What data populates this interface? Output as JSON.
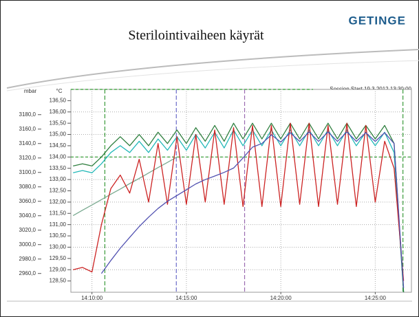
{
  "brand": "GETINGE",
  "chart_data": {
    "type": "line",
    "title": "Sterilointivaiheen käyrät",
    "annotation": "Session Start 19.3.2012 13:30:00",
    "ylabel": "°C",
    "y2label": "mbar",
    "x": [
      "14:09:00",
      "14:09:30",
      "14:10:00",
      "14:10:30",
      "14:11:00",
      "14:11:30",
      "14:12:00",
      "14:12:30",
      "14:13:00",
      "14:13:30",
      "14:14:00",
      "14:14:30",
      "14:15:00",
      "14:15:30",
      "14:16:00",
      "14:16:30",
      "14:17:00",
      "14:17:30",
      "14:18:00",
      "14:18:30",
      "14:19:00",
      "14:19:30",
      "14:20:00",
      "14:20:30",
      "14:21:00",
      "14:21:30",
      "14:22:00",
      "14:22:30",
      "14:23:00",
      "14:23:30",
      "14:24:00",
      "14:24:30",
      "14:25:00",
      "14:25:30",
      "14:26:00",
      "14:26:30"
    ],
    "xlim": [
      "14:08:53",
      "14:26:55"
    ],
    "xticks": [
      "14:10:00",
      "14:15:00",
      "14:20:00",
      "14:25:00"
    ],
    "ylim": [
      128.0,
      137.0
    ],
    "yticks": [
      {
        "value": 128.5,
        "label": "128,50"
      },
      {
        "value": 129,
        "label": "129,00"
      },
      {
        "value": 129.5,
        "label": "129,50"
      },
      {
        "value": 130,
        "label": "130,00"
      },
      {
        "value": 130.5,
        "label": "130,50"
      },
      {
        "value": 131,
        "label": "131,00"
      },
      {
        "value": 131.5,
        "label": "131,50"
      },
      {
        "value": 132,
        "label": "132,00"
      },
      {
        "value": 132.5,
        "label": "132,50"
      },
      {
        "value": 133,
        "label": "133,00"
      },
      {
        "value": 133.5,
        "label": "133,50"
      },
      {
        "value": 134,
        "label": "134,00"
      },
      {
        "value": 134.5,
        "label": "134,50"
      },
      {
        "value": 135,
        "label": "135,00"
      },
      {
        "value": 135.5,
        "label": "135,50"
      },
      {
        "value": 136,
        "label": "136,00"
      },
      {
        "value": 136.5,
        "label": "136,50"
      }
    ],
    "y2lim": [
      2934,
      3215
    ],
    "y2ticks": [
      {
        "value": 2960,
        "label": "2960,0"
      },
      {
        "value": 2980,
        "label": "2980,0"
      },
      {
        "value": 3000,
        "label": "3000,0"
      },
      {
        "value": 3020,
        "label": "3020,0"
      },
      {
        "value": 3040,
        "label": "3040,0"
      },
      {
        "value": 3060,
        "label": "3060,0"
      },
      {
        "value": 3080,
        "label": "3080,0"
      },
      {
        "value": 3100,
        "label": "3100,0"
      },
      {
        "value": 3120,
        "label": "3120,0"
      },
      {
        "value": 3140,
        "label": "3140,0"
      },
      {
        "value": 3160,
        "label": "3160,0"
      },
      {
        "value": 3180,
        "label": "3180,0"
      }
    ],
    "grid": true,
    "hlines": [
      {
        "value": 134.0,
        "color": "#2a9a2a"
      }
    ],
    "vlines": [
      {
        "x": "14:10:41",
        "color": "#3a9a3a"
      },
      {
        "x": "14:14:28",
        "color": "#6a6ac8"
      },
      {
        "x": "14:18:05",
        "color": "#9a6ab0"
      },
      {
        "x": "14:26:28",
        "color": "#3a9a3a"
      }
    ],
    "series": [
      {
        "color": "#7aaa90",
        "values": [
          131.4,
          131.64,
          131.87,
          132.11,
          132.35,
          132.58,
          132.82,
          133.05,
          133.29,
          133.53,
          133.76,
          134.0,
          null,
          null,
          null,
          null,
          null,
          null,
          null,
          null,
          null,
          null,
          null,
          null,
          null,
          null,
          null,
          null,
          null,
          null,
          null,
          null,
          null,
          null,
          null,
          null
        ]
      },
      {
        "color": "#22b8b8",
        "values": [
          133.3,
          133.4,
          133.3,
          133.7,
          134.2,
          134.5,
          134.2,
          134.7,
          134.2,
          134.8,
          134.3,
          134.9,
          134.3,
          135.0,
          134.4,
          135.1,
          134.4,
          135.2,
          134.5,
          135.2,
          134.5,
          135.2,
          134.5,
          135.2,
          134.5,
          135.2,
          134.5,
          135.2,
          134.5,
          135.2,
          134.5,
          135.1,
          134.5,
          135.1,
          134.2,
          128.0
        ]
      },
      {
        "color": "#2f7f3f",
        "values": [
          133.6,
          133.7,
          133.6,
          134.0,
          134.5,
          134.9,
          134.5,
          135.0,
          134.5,
          135.1,
          134.6,
          135.2,
          134.6,
          135.3,
          134.7,
          135.4,
          134.7,
          135.5,
          134.8,
          135.5,
          134.8,
          135.5,
          134.8,
          135.5,
          134.8,
          135.5,
          134.8,
          135.5,
          134.8,
          135.5,
          134.8,
          135.4,
          134.8,
          135.4,
          134.6,
          128.0
        ]
      },
      {
        "color": "#cc2222",
        "values": [
          129.0,
          129.1,
          128.9,
          131.0,
          132.6,
          133.2,
          132.4,
          133.9,
          132.0,
          134.6,
          131.9,
          134.9,
          131.9,
          135.0,
          132.0,
          135.2,
          131.9,
          135.3,
          131.8,
          135.4,
          131.8,
          135.4,
          131.8,
          135.5,
          131.9,
          135.5,
          131.8,
          135.4,
          131.9,
          135.5,
          131.8,
          135.4,
          132.0,
          134.7,
          133.5,
          128.5
        ]
      },
      {
        "color": "#5050b0",
        "axis": "y2",
        "values": [
          null,
          null,
          null,
          2960,
          2978,
          2995,
          3010,
          3025,
          3038,
          3050,
          3060,
          3068,
          3076,
          3084,
          3090,
          3095,
          3100,
          3106,
          3120,
          3135,
          3140,
          3152,
          3142,
          3155,
          3143,
          3156,
          3143,
          3156,
          3143,
          3156,
          3143,
          3155,
          3143,
          3155,
          3140,
          2940
        ]
      }
    ]
  }
}
